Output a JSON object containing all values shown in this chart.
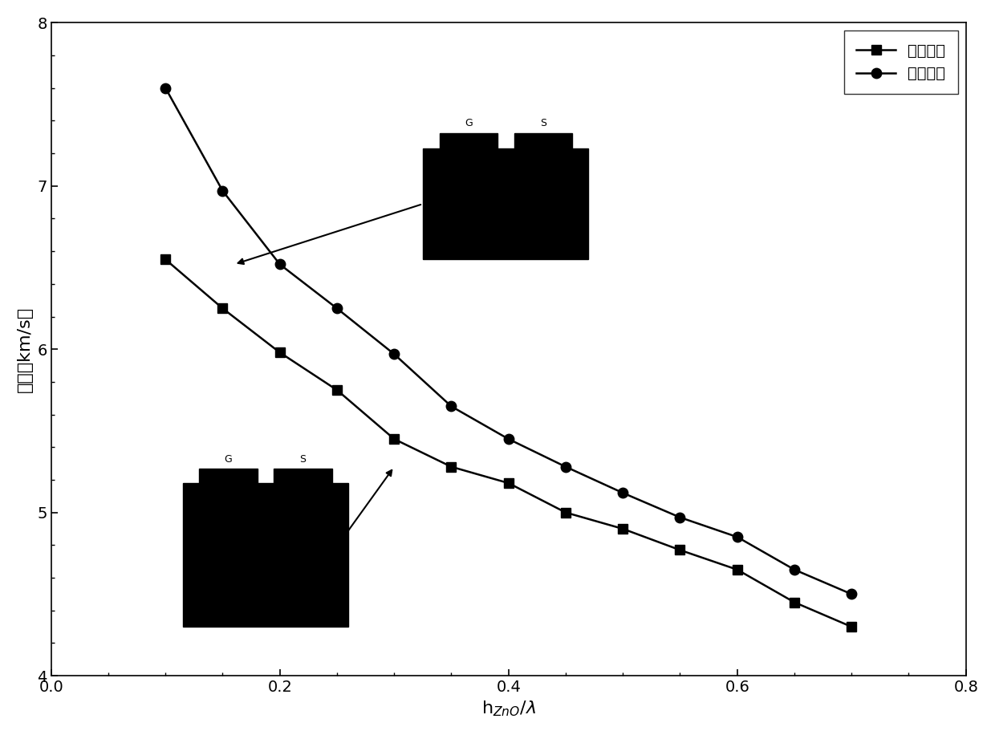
{
  "double_layer_x": [
    0.1,
    0.15,
    0.2,
    0.25,
    0.3,
    0.35,
    0.4,
    0.45,
    0.5,
    0.55,
    0.6,
    0.65,
    0.7
  ],
  "double_layer_y": [
    6.55,
    6.25,
    5.98,
    5.75,
    5.45,
    5.28,
    5.18,
    5.0,
    4.9,
    4.77,
    4.65,
    4.45,
    4.3
  ],
  "single_layer_x": [
    0.1,
    0.15,
    0.2,
    0.25,
    0.3,
    0.35,
    0.4,
    0.45,
    0.5,
    0.55,
    0.6,
    0.65,
    0.7
  ],
  "single_layer_y": [
    7.6,
    6.97,
    6.52,
    6.25,
    5.97,
    5.65,
    5.45,
    5.28,
    5.12,
    4.97,
    4.85,
    4.65,
    4.5
  ],
  "line_color": "#000000",
  "marker_square": "s",
  "marker_circle": "o",
  "marker_size": 9,
  "line_width": 1.8,
  "xlabel": "h$_{ZnO}$/$\\lambda$",
  "ylabel": "声速（km/s）",
  "xlim": [
    0.0,
    0.8
  ],
  "ylim": [
    4.0,
    8.0
  ],
  "xticks": [
    0.0,
    0.2,
    0.4,
    0.6,
    0.8
  ],
  "yticks": [
    4,
    5,
    6,
    7,
    8
  ],
  "legend_label_double": "双层电极",
  "legend_label_single": "单层电极",
  "background_color": "#ffffff",
  "title_fontsize": 14,
  "axis_fontsize": 16,
  "tick_fontsize": 14,
  "legend_fontsize": 14
}
